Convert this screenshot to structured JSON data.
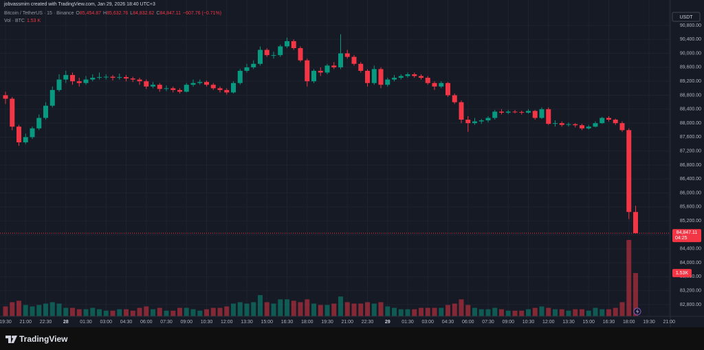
{
  "chart_data": {
    "type": "candlestick",
    "attribution": "jobvassmim created with TradingView.com, Jan 29, 2026 18:40 UTC+3",
    "symbol": "Bitcoin / TetherUS · 15 · Binance",
    "o_label": "O",
    "o": "85,454.87",
    "h_label": "H",
    "h": "85,632.76",
    "l_label": "L",
    "l": "84,832.62",
    "c_label": "C",
    "c": "84,847.11",
    "change": "−607.76 (−0.71%)",
    "vol_label": "Vol · BTC",
    "vol": "1.53 K",
    "currency": "USDT",
    "last_price_label": "84,847.11",
    "countdown": "04:25",
    "last_volume_label": "1.53K",
    "brand": "TradingView",
    "up_color": "#089981",
    "down_color": "#f23645",
    "grid": true,
    "ylim": [
      82465,
      91135
    ],
    "yticks": [
      {
        "value": 82800,
        "label": "82,800.00"
      },
      {
        "value": 83200,
        "label": "83,200.00"
      },
      {
        "value": 83600,
        "label": "83,600.00"
      },
      {
        "value": 84000,
        "label": "84,000.00"
      },
      {
        "value": 84400,
        "label": "84,400.00"
      },
      {
        "value": 84800,
        "label": "84,800.00"
      },
      {
        "value": 85200,
        "label": "85,200.00"
      },
      {
        "value": 85600,
        "label": "85,600.00"
      },
      {
        "value": 86000,
        "label": "86,000.00"
      },
      {
        "value": 86400,
        "label": "86,400.00"
      },
      {
        "value": 86800,
        "label": "86,800.00"
      },
      {
        "value": 87200,
        "label": "87,200.00"
      },
      {
        "value": 87600,
        "label": "87,600.00"
      },
      {
        "value": 88000,
        "label": "88,000.00"
      },
      {
        "value": 88400,
        "label": "88,400.00"
      },
      {
        "value": 88800,
        "label": "88,800.00"
      },
      {
        "value": 89200,
        "label": "89,200.00"
      },
      {
        "value": 89600,
        "label": "89,600.00"
      },
      {
        "value": 90000,
        "label": "90,000.00"
      },
      {
        "value": 90400,
        "label": "90,400.00"
      },
      {
        "value": 90800,
        "label": "90,800.00"
      }
    ],
    "volume_lim": [
      0,
      10.7
    ],
    "categories": [
      "19:30",
      null,
      null,
      "21:00",
      null,
      null,
      "22:30",
      null,
      null,
      "28",
      null,
      null,
      "01:30",
      null,
      null,
      "03:00",
      null,
      null,
      "04:30",
      null,
      null,
      "06:00",
      null,
      null,
      "07:30",
      null,
      null,
      "09:00",
      null,
      null,
      "10:30",
      null,
      null,
      "12:00",
      null,
      null,
      "13:30",
      null,
      null,
      "15:00",
      null,
      null,
      "16:30",
      null,
      null,
      "18:00",
      null,
      null,
      "19:30",
      null,
      null,
      "21:00",
      null,
      null,
      "22:30",
      null,
      null,
      "29",
      null,
      null,
      "01:30",
      null,
      null,
      "03:00",
      null,
      null,
      "04:30",
      null,
      null,
      "06:00",
      null,
      null,
      "07:30",
      null,
      null,
      "09:00",
      null,
      null,
      "10:30",
      null,
      null,
      "12:00",
      null,
      null,
      "13:30",
      null,
      null,
      "15:00",
      null,
      null,
      "16:30",
      null,
      null,
      "18:00",
      null,
      null,
      "19:30",
      null,
      null,
      "21:00"
    ],
    "ohlc": [
      [
        88800,
        88900,
        88550,
        88700
      ],
      [
        88700,
        88750,
        87800,
        87900
      ],
      [
        87900,
        87950,
        87350,
        87450
      ],
      [
        87450,
        87700,
        87400,
        87600
      ],
      [
        87600,
        87900,
        87550,
        87850
      ],
      [
        87850,
        88250,
        87800,
        88150
      ],
      [
        88150,
        88600,
        88100,
        88500
      ],
      [
        88500,
        89050,
        88450,
        88950
      ],
      [
        88950,
        89400,
        88900,
        89250
      ],
      [
        89250,
        89500,
        89150,
        89380
      ],
      [
        89380,
        89450,
        89100,
        89200
      ],
      [
        89200,
        89300,
        89050,
        89150
      ],
      [
        89150,
        89350,
        89100,
        89250
      ],
      [
        89250,
        89400,
        89200,
        89300
      ],
      [
        89300,
        89450,
        89250,
        89320
      ],
      [
        89320,
        89400,
        89250,
        89330
      ],
      [
        89330,
        89380,
        89220,
        89300
      ],
      [
        89300,
        89420,
        89250,
        89320
      ],
      [
        89320,
        89380,
        89200,
        89280
      ],
      [
        89280,
        89330,
        89180,
        89250
      ],
      [
        89250,
        89300,
        89100,
        89200
      ],
      [
        89200,
        89250,
        88980,
        89050
      ],
      [
        89050,
        89180,
        89000,
        89100
      ],
      [
        89100,
        89150,
        88900,
        88980
      ],
      [
        88980,
        89080,
        88920,
        89000
      ],
      [
        89000,
        89050,
        88880,
        88950
      ],
      [
        88950,
        89000,
        88850,
        88900
      ],
      [
        88900,
        89150,
        88880,
        89100
      ],
      [
        89100,
        89250,
        89050,
        89150
      ],
      [
        89150,
        89250,
        89100,
        89180
      ],
      [
        89180,
        89220,
        89050,
        89100
      ],
      [
        89100,
        89150,
        88950,
        89000
      ],
      [
        89000,
        89050,
        88880,
        88950
      ],
      [
        88950,
        89000,
        88820,
        88880
      ],
      [
        88880,
        89200,
        88850,
        89150
      ],
      [
        89150,
        89550,
        89100,
        89500
      ],
      [
        89500,
        89700,
        89450,
        89600
      ],
      [
        89600,
        89800,
        89550,
        89700
      ],
      [
        89700,
        90200,
        89650,
        90100
      ],
      [
        90100,
        90150,
        89900,
        89950
      ],
      [
        89950,
        90050,
        89850,
        89950
      ],
      [
        89950,
        90250,
        89900,
        90200
      ],
      [
        90200,
        90450,
        90150,
        90350
      ],
      [
        90350,
        90400,
        90100,
        90150
      ],
      [
        90150,
        90200,
        89750,
        89800
      ],
      [
        89800,
        89850,
        89050,
        89200
      ],
      [
        89200,
        89550,
        89150,
        89500
      ],
      [
        89500,
        89600,
        89350,
        89450
      ],
      [
        89450,
        89700,
        89400,
        89650
      ],
      [
        89650,
        89750,
        89550,
        89600
      ],
      [
        89600,
        90550,
        89550,
        90000
      ],
      [
        90000,
        90100,
        89850,
        89900
      ],
      [
        89900,
        89950,
        89650,
        89700
      ],
      [
        89700,
        89750,
        89450,
        89500
      ],
      [
        89500,
        89550,
        89050,
        89150
      ],
      [
        89150,
        89650,
        89100,
        89550
      ],
      [
        89550,
        89600,
        89000,
        89100
      ],
      [
        89100,
        89300,
        89050,
        89250
      ],
      [
        89250,
        89380,
        89200,
        89300
      ],
      [
        89300,
        89400,
        89250,
        89350
      ],
      [
        89350,
        89450,
        89300,
        89400
      ],
      [
        89400,
        89450,
        89300,
        89350
      ],
      [
        89350,
        89400,
        89250,
        89300
      ],
      [
        89300,
        89350,
        89100,
        89150
      ],
      [
        89150,
        89200,
        88950,
        89050
      ],
      [
        89050,
        89200,
        89000,
        89150
      ],
      [
        89150,
        89180,
        88750,
        88800
      ],
      [
        88800,
        88850,
        88550,
        88600
      ],
      [
        88600,
        88650,
        88000,
        88100
      ],
      [
        88100,
        88200,
        87750,
        88000
      ],
      [
        88000,
        88150,
        87950,
        88050
      ],
      [
        88050,
        88120,
        87980,
        88080
      ],
      [
        88080,
        88200,
        88020,
        88150
      ],
      [
        88150,
        88380,
        88100,
        88330
      ],
      [
        88330,
        88400,
        88250,
        88300
      ],
      [
        88300,
        88380,
        88260,
        88330
      ],
      [
        88330,
        88380,
        88280,
        88320
      ],
      [
        88320,
        88360,
        88250,
        88300
      ],
      [
        88300,
        88400,
        88270,
        88350
      ],
      [
        88350,
        88380,
        88100,
        88150
      ],
      [
        88150,
        88450,
        88120,
        88400
      ],
      [
        88400,
        88450,
        87950,
        87980
      ],
      [
        87980,
        88080,
        87900,
        88000
      ],
      [
        88000,
        88050,
        87900,
        87950
      ],
      [
        87950,
        88020,
        87900,
        87970
      ],
      [
        87970,
        88000,
        87880,
        87940
      ],
      [
        87940,
        87980,
        87800,
        87850
      ],
      [
        87850,
        87950,
        87820,
        87900
      ],
      [
        87900,
        88050,
        87880,
        88000
      ],
      [
        88000,
        88180,
        87980,
        88150
      ],
      [
        88150,
        88200,
        88050,
        88100
      ],
      [
        88100,
        88130,
        87950,
        88000
      ],
      [
        88000,
        88050,
        87750,
        87800
      ],
      [
        87800,
        87850,
        85250,
        85454.87
      ],
      [
        85454.87,
        85632.76,
        84832.62,
        84847.11
      ],
      null,
      null,
      null,
      null,
      null
    ],
    "volume": [
      0.35,
      0.5,
      0.55,
      0.4,
      0.35,
      0.4,
      0.45,
      0.5,
      0.45,
      0.3,
      0.3,
      0.25,
      0.25,
      0.3,
      0.25,
      0.2,
      0.2,
      0.25,
      0.25,
      0.2,
      0.3,
      0.35,
      0.25,
      0.3,
      0.2,
      0.2,
      0.3,
      0.3,
      0.25,
      0.2,
      0.25,
      0.3,
      0.3,
      0.35,
      0.45,
      0.5,
      0.45,
      0.5,
      0.75,
      0.5,
      0.45,
      0.6,
      0.6,
      0.55,
      0.5,
      0.6,
      0.45,
      0.4,
      0.4,
      0.45,
      0.7,
      0.5,
      0.45,
      0.45,
      0.5,
      0.45,
      0.5,
      0.35,
      0.3,
      0.25,
      0.25,
      0.25,
      0.3,
      0.3,
      0.3,
      0.3,
      0.4,
      0.45,
      0.6,
      0.4,
      0.3,
      0.25,
      0.25,
      0.3,
      0.25,
      0.2,
      0.2,
      0.2,
      0.25,
      0.3,
      0.35,
      0.3,
      0.25,
      0.25,
      0.2,
      0.25,
      0.25,
      0.2,
      0.3,
      0.25,
      0.25,
      0.3,
      0.5,
      2.7,
      1.53,
      null,
      null,
      null,
      null,
      null
    ]
  }
}
